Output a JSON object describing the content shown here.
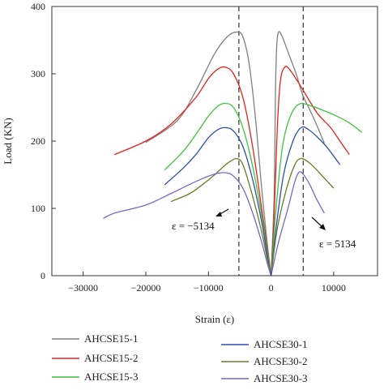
{
  "chart_data": {
    "type": "line",
    "title": "",
    "xlabel": "Strain (ε)",
    "ylabel": "Load (KN)",
    "xlim": [
      -35000,
      17000
    ],
    "ylim": [
      0,
      400
    ],
    "xticks": [
      -30000,
      -20000,
      -10000,
      0,
      10000
    ],
    "xtick_labels": [
      "−30000",
      "−20000",
      "−10000",
      "0",
      "10000"
    ],
    "yticks": [
      0,
      100,
      200,
      300,
      400
    ],
    "ytick_labels": [
      "0",
      "100",
      "200",
      "300",
      "400"
    ],
    "grid": false,
    "legend": "bottom",
    "reference_lines": [
      {
        "x": -5134,
        "label": "ε = −5134"
      },
      {
        "x": 5134,
        "label": "ε = 5134"
      }
    ],
    "series": [
      {
        "name": "AHCSE15-1",
        "color": "#808080",
        "left": [
          [
            -20000,
            198
          ],
          [
            -15000,
            230
          ],
          [
            -12000,
            275
          ],
          [
            -9000,
            330
          ],
          [
            -7000,
            355
          ],
          [
            -5500,
            362
          ],
          [
            -4500,
            355
          ],
          [
            -3500,
            315
          ],
          [
            -2500,
            235
          ],
          [
            -1500,
            130
          ],
          [
            -700,
            55
          ],
          [
            0,
            0
          ]
        ],
        "right": [
          [
            0,
            0
          ],
          [
            500,
            120
          ],
          [
            700,
            270
          ],
          [
            900,
            340
          ],
          [
            1200,
            362
          ],
          [
            1800,
            355
          ],
          [
            2800,
            330
          ],
          [
            4000,
            300
          ],
          [
            5000,
            270
          ],
          [
            6000,
            250
          ],
          [
            7000,
            230
          ],
          [
            8500,
            197
          ]
        ]
      },
      {
        "name": "AHCSE15-2",
        "color": "#e8231c",
        "left": [
          [
            -25000,
            180
          ],
          [
            -20000,
            200
          ],
          [
            -16000,
            225
          ],
          [
            -12000,
            265
          ],
          [
            -10000,
            293
          ],
          [
            -8500,
            307
          ],
          [
            -7300,
            310
          ],
          [
            -6000,
            300
          ],
          [
            -4500,
            265
          ],
          [
            -3000,
            195
          ],
          [
            -1500,
            100
          ],
          [
            -500,
            35
          ],
          [
            0,
            0
          ]
        ],
        "right": [
          [
            0,
            0
          ],
          [
            500,
            90
          ],
          [
            1000,
            220
          ],
          [
            1500,
            290
          ],
          [
            2200,
            310
          ],
          [
            3000,
            306
          ],
          [
            4500,
            285
          ],
          [
            6000,
            262
          ],
          [
            7500,
            240
          ],
          [
            9500,
            220
          ],
          [
            11000,
            200
          ],
          [
            12500,
            180
          ]
        ]
      },
      {
        "name": "AHCSE15-3",
        "color": "#3fc23f",
        "left": [
          [
            -17000,
            157
          ],
          [
            -14000,
            185
          ],
          [
            -12000,
            210
          ],
          [
            -10000,
            237
          ],
          [
            -8500,
            252
          ],
          [
            -7300,
            256
          ],
          [
            -6000,
            250
          ],
          [
            -4500,
            220
          ],
          [
            -3000,
            165
          ],
          [
            -1500,
            90
          ],
          [
            -500,
            30
          ],
          [
            0,
            0
          ]
        ],
        "right": [
          [
            0,
            0
          ],
          [
            800,
            100
          ],
          [
            1800,
            190
          ],
          [
            3000,
            235
          ],
          [
            4500,
            255
          ],
          [
            6500,
            252
          ],
          [
            8500,
            245
          ],
          [
            10500,
            237
          ],
          [
            12500,
            227
          ],
          [
            14500,
            213
          ]
        ]
      },
      {
        "name": "AHCSE30-1",
        "color": "#2b4fb3",
        "left": [
          [
            -17000,
            135
          ],
          [
            -14000,
            160
          ],
          [
            -12000,
            180
          ],
          [
            -10000,
            205
          ],
          [
            -8500,
            217
          ],
          [
            -7300,
            220
          ],
          [
            -6000,
            215
          ],
          [
            -4500,
            192
          ],
          [
            -3000,
            145
          ],
          [
            -1500,
            80
          ],
          [
            -500,
            25
          ],
          [
            0,
            0
          ]
        ],
        "right": [
          [
            0,
            0
          ],
          [
            800,
            70
          ],
          [
            2000,
            150
          ],
          [
            3500,
            200
          ],
          [
            4800,
            220
          ],
          [
            6000,
            217
          ],
          [
            7500,
            205
          ],
          [
            9000,
            190
          ],
          [
            11000,
            165
          ]
        ]
      },
      {
        "name": "AHCSE30-2",
        "color": "#6b7d2a",
        "left": [
          [
            -16000,
            110
          ],
          [
            -13000,
            122
          ],
          [
            -11000,
            135
          ],
          [
            -9000,
            150
          ],
          [
            -7500,
            163
          ],
          [
            -6500,
            170
          ],
          [
            -5500,
            174
          ],
          [
            -4500,
            165
          ],
          [
            -3000,
            120
          ],
          [
            -1500,
            65
          ],
          [
            -500,
            20
          ],
          [
            0,
            0
          ]
        ],
        "right": [
          [
            0,
            0
          ],
          [
            1000,
            70
          ],
          [
            2500,
            130
          ],
          [
            3800,
            165
          ],
          [
            4700,
            174
          ],
          [
            5800,
            170
          ],
          [
            7000,
            160
          ],
          [
            8500,
            145
          ],
          [
            10000,
            130
          ]
        ]
      },
      {
        "name": "AHCSE30-3",
        "color": "#7a66c9",
        "left": [
          [
            -26800,
            85
          ],
          [
            -25000,
            93
          ],
          [
            -20000,
            105
          ],
          [
            -16000,
            122
          ],
          [
            -12000,
            140
          ],
          [
            -9000,
            151
          ],
          [
            -7300,
            153
          ],
          [
            -6000,
            148
          ],
          [
            -4500,
            130
          ],
          [
            -3000,
            95
          ],
          [
            -1500,
            50
          ],
          [
            -500,
            15
          ],
          [
            0,
            0
          ]
        ],
        "right": [
          [
            0,
            0
          ],
          [
            1200,
            50
          ],
          [
            2700,
            100
          ],
          [
            3800,
            140
          ],
          [
            4500,
            154
          ],
          [
            5200,
            150
          ],
          [
            6200,
            135
          ],
          [
            7200,
            115
          ],
          [
            8500,
            93
          ]
        ]
      }
    ]
  }
}
